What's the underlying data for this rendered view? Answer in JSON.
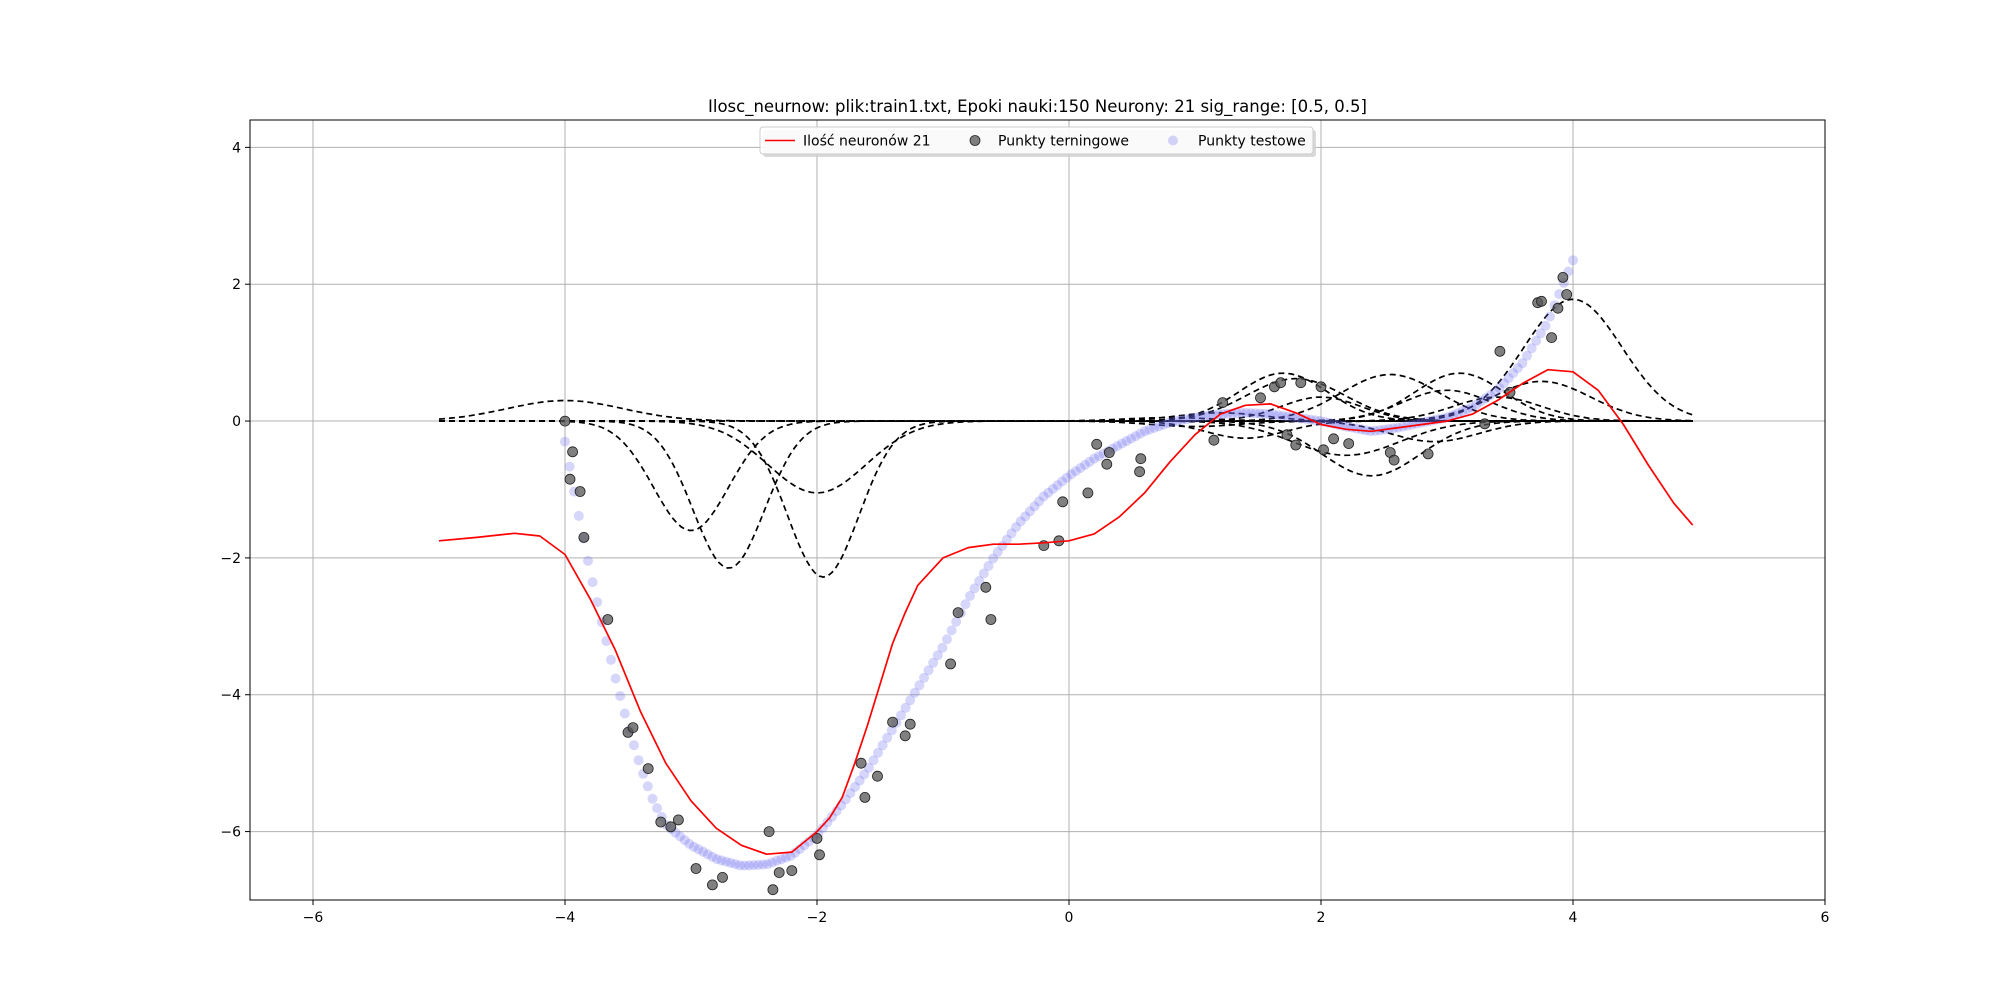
{
  "chart_data": {
    "type": "line",
    "title": "Ilosc_neurnow: plik:train1.txt, Epoki nauki:150 Neurony: 21 sig_range: [0.5, 0.5]",
    "xlabel": "",
    "ylabel": "",
    "xlim": [
      -6.5,
      6
    ],
    "ylim": [
      -7,
      4.4
    ],
    "xticks": [
      -6,
      -4,
      -2,
      0,
      2,
      4,
      6
    ],
    "yticks": [
      -6,
      -4,
      -2,
      0,
      2,
      4
    ],
    "xtick_labels": [
      "−6",
      "−4",
      "−2",
      "0",
      "2",
      "4",
      "6"
    ],
    "ytick_labels": [
      "−6",
      "−4",
      "−2",
      "0",
      "2",
      "4"
    ],
    "grid": true,
    "legend": {
      "placement": "upper center",
      "entries": [
        {
          "label": "Ilość neuronów 21",
          "kind": "line",
          "color": "#ff0000"
        },
        {
          "label": "Punkty terningowe",
          "kind": "marker",
          "color": "#555555"
        },
        {
          "label": "Punkty testowe",
          "kind": "marker",
          "color": "#b8b8f5"
        }
      ]
    },
    "network_output": {
      "name": "Ilość neuronów 21",
      "color": "#ff0000",
      "x": [
        -5.0,
        -4.7,
        -4.4,
        -4.2,
        -4.0,
        -3.8,
        -3.6,
        -3.4,
        -3.2,
        -3.0,
        -2.8,
        -2.6,
        -2.4,
        -2.2,
        -2.0,
        -1.9,
        -1.8,
        -1.7,
        -1.6,
        -1.5,
        -1.4,
        -1.3,
        -1.2,
        -1.0,
        -0.8,
        -0.6,
        -0.4,
        -0.2,
        0.0,
        0.2,
        0.4,
        0.6,
        0.8,
        1.0,
        1.2,
        1.4,
        1.6,
        1.8,
        2.0,
        2.2,
        2.4,
        2.6,
        2.8,
        3.0,
        3.2,
        3.4,
        3.6,
        3.8,
        4.0,
        4.2,
        4.4,
        4.6,
        4.8,
        4.95
      ],
      "y": [
        -1.75,
        -1.7,
        -1.64,
        -1.68,
        -1.95,
        -2.6,
        -3.35,
        -4.25,
        -5.0,
        -5.55,
        -5.95,
        -6.2,
        -6.33,
        -6.3,
        -6.0,
        -5.8,
        -5.5,
        -5.0,
        -4.45,
        -3.85,
        -3.25,
        -2.8,
        -2.4,
        -2.0,
        -1.85,
        -1.8,
        -1.8,
        -1.78,
        -1.75,
        -1.65,
        -1.4,
        -1.05,
        -0.6,
        -0.2,
        0.1,
        0.23,
        0.25,
        0.12,
        -0.05,
        -0.12,
        -0.15,
        -0.1,
        -0.05,
        0.0,
        0.1,
        0.3,
        0.55,
        0.75,
        0.72,
        0.45,
        -0.05,
        -0.65,
        -1.2,
        -1.52
      ]
    },
    "neurons": [
      {
        "center": -4.0,
        "amplitude": 0.3,
        "width": 0.65
      },
      {
        "center": -3.0,
        "amplitude": -1.6,
        "width": 0.42
      },
      {
        "center": -2.7,
        "amplitude": -2.15,
        "width": 0.4
      },
      {
        "center": -2.0,
        "amplitude": -1.05,
        "width": 0.55
      },
      {
        "center": -1.95,
        "amplitude": -2.28,
        "width": 0.4
      },
      {
        "center": 1.7,
        "amplitude": 0.7,
        "width": 0.5
      },
      {
        "center": 1.8,
        "amplitude": 0.62,
        "width": 0.55
      },
      {
        "center": 2.2,
        "amplitude": -0.5,
        "width": 0.6
      },
      {
        "center": 2.4,
        "amplitude": -0.8,
        "width": 0.55
      },
      {
        "center": 2.55,
        "amplitude": 0.68,
        "width": 0.55
      },
      {
        "center": 3.0,
        "amplitude": 0.45,
        "width": 0.5
      },
      {
        "center": 3.1,
        "amplitude": 0.7,
        "width": 0.5
      },
      {
        "center": 3.4,
        "amplitude": 0.35,
        "width": 0.5
      },
      {
        "center": 3.75,
        "amplitude": 0.58,
        "width": 0.55
      },
      {
        "center": 4.0,
        "amplitude": 1.78,
        "width": 0.55
      },
      {
        "center": 1.4,
        "amplitude": -0.25,
        "width": 0.45
      },
      {
        "center": 1.2,
        "amplitude": 0.12,
        "width": 0.5
      },
      {
        "center": 2.9,
        "amplitude": -0.3,
        "width": 0.5
      },
      {
        "center": 0.8,
        "amplitude": 0.05,
        "width": 0.5
      },
      {
        "center": 1.0,
        "amplitude": -0.08,
        "width": 0.5
      },
      {
        "center": 2.0,
        "amplitude": 0.35,
        "width": 0.45
      }
    ],
    "neuron_range": [
      -5.0,
      4.95
    ],
    "training_points": {
      "name": "Punkty terningowe",
      "x": [
        -4.0,
        -3.96,
        -3.94,
        -3.88,
        -3.85,
        -3.66,
        -3.5,
        -3.46,
        -3.34,
        -3.24,
        -3.16,
        -3.1,
        -2.96,
        -2.83,
        -2.75,
        -2.38,
        -2.35,
        -2.3,
        -2.2,
        -2.0,
        -1.98,
        -1.65,
        -1.62,
        -1.52,
        -1.4,
        -1.3,
        -1.26,
        -0.94,
        -0.88,
        -0.66,
        -0.62,
        -0.2,
        -0.08,
        -0.05,
        0.15,
        0.22,
        0.3,
        0.32,
        0.56,
        0.57,
        1.15,
        1.22,
        1.52,
        1.63,
        1.68,
        1.73,
        1.8,
        1.84,
        2.0,
        2.02,
        2.1,
        2.22,
        2.55,
        2.58,
        2.85,
        3.3,
        3.42,
        3.5,
        3.72,
        3.75,
        3.83,
        3.88,
        3.92,
        3.95
      ],
      "y": [
        0.0,
        -0.85,
        -0.45,
        -1.03,
        -1.7,
        -2.9,
        -4.55,
        -4.48,
        -5.08,
        -5.86,
        -5.93,
        -5.83,
        -6.54,
        -6.78,
        -6.67,
        -6.0,
        -6.85,
        -6.6,
        -6.57,
        -6.1,
        -6.34,
        -5.0,
        -5.5,
        -5.19,
        -4.4,
        -4.6,
        -4.43,
        -3.55,
        -2.8,
        -2.43,
        -2.9,
        -1.82,
        -1.75,
        -1.18,
        -1.05,
        -0.34,
        -0.63,
        -0.46,
        -0.74,
        -0.55,
        -0.28,
        0.27,
        0.34,
        0.5,
        0.56,
        -0.2,
        -0.35,
        0.56,
        0.5,
        -0.42,
        -0.26,
        -0.33,
        -0.46,
        -0.57,
        -0.48,
        -0.04,
        1.02,
        0.42,
        1.73,
        1.75,
        1.22,
        1.65,
        2.1,
        1.85
      ]
    },
    "test_points": {
      "name": "Punkty testowe",
      "x_range": [
        -4.0,
        4.0
      ],
      "count": 220
    }
  }
}
